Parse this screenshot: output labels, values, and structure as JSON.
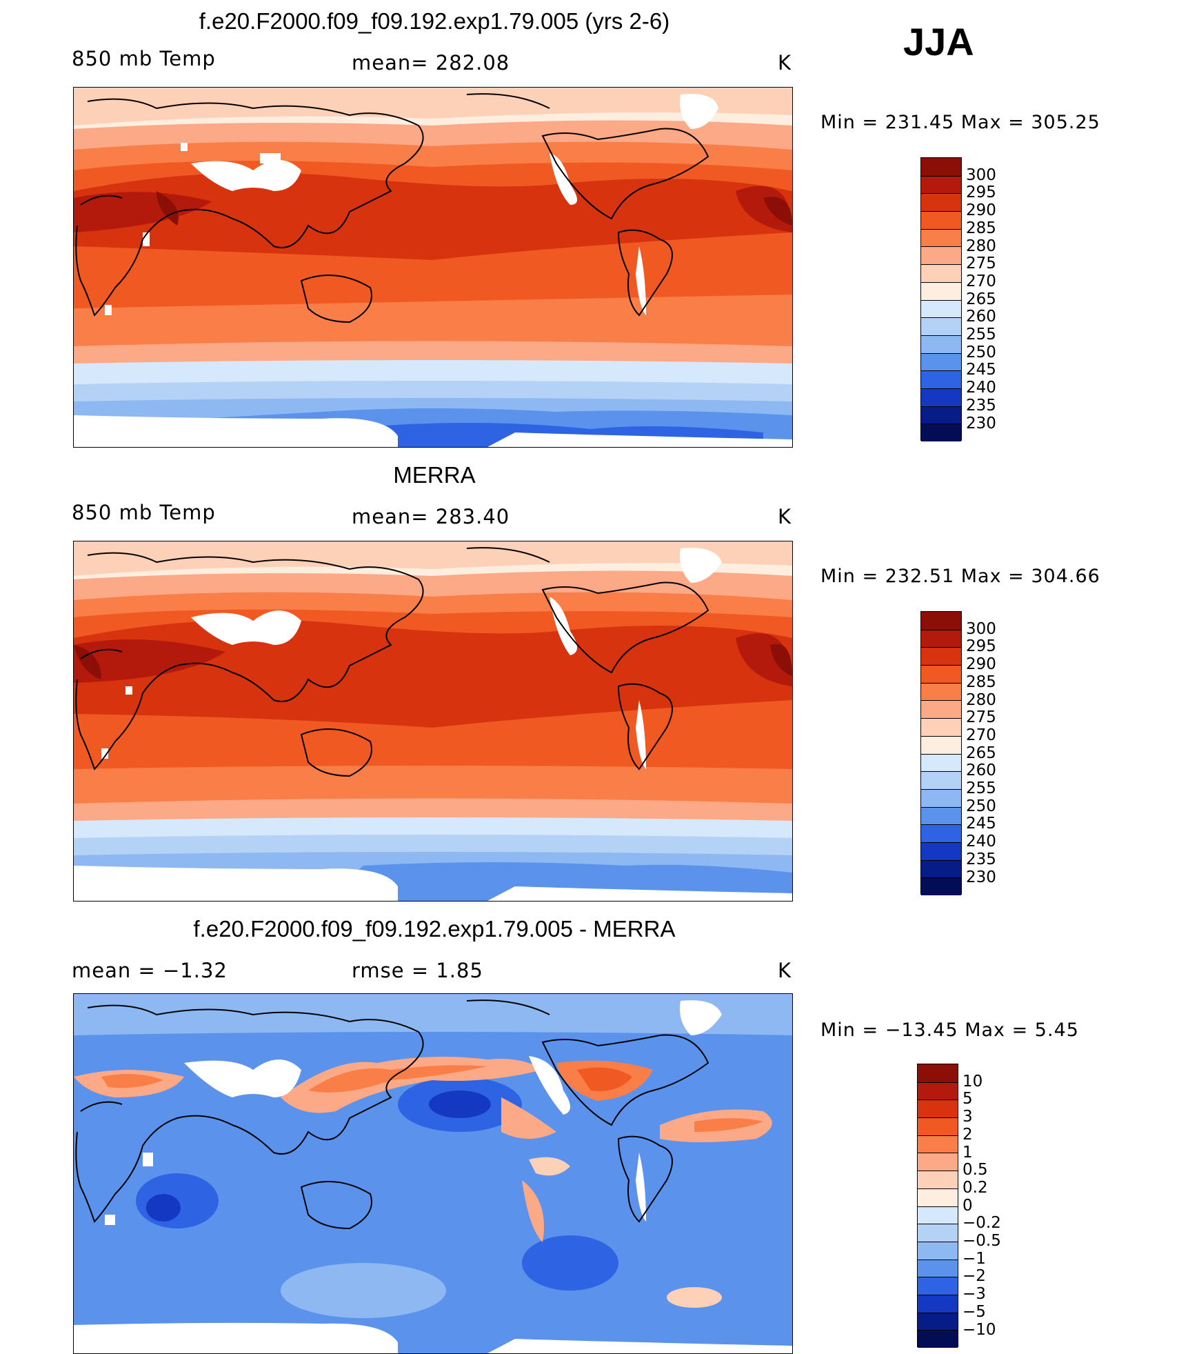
{
  "season": "JJA",
  "units": "K",
  "panels": [
    {
      "id": "model",
      "title": "f.e20.F2000.f09_f09.192.exp1.79.005 (yrs 2-6)",
      "variable": "850 mb Temp",
      "stats": "mean= 282.08",
      "units": "K",
      "minmax": "Min = 231.45 Max = 305.25",
      "colorbar": {
        "labels": [
          "300",
          "295",
          "290",
          "285",
          "280",
          "275",
          "270",
          "265",
          "260",
          "255",
          "250",
          "245",
          "240",
          "235",
          "230"
        ],
        "colors": [
          "#8b0f07",
          "#b41a0c",
          "#d6330e",
          "#f05a22",
          "#f97e47",
          "#fca987",
          "#fdd0b8",
          "#fdeee0",
          "#d6e8fb",
          "#b3d2f6",
          "#8db8f2",
          "#5a92ec",
          "#2e64e3",
          "#1438c2",
          "#061c86",
          "#030d55"
        ]
      }
    },
    {
      "id": "obs",
      "title": "MERRA",
      "variable": "850 mb Temp",
      "stats": "mean= 283.40",
      "units": "K",
      "minmax": "Min = 232.51 Max = 304.66",
      "colorbar": {
        "labels": [
          "300",
          "295",
          "290",
          "285",
          "280",
          "275",
          "270",
          "265",
          "260",
          "255",
          "250",
          "245",
          "240",
          "235",
          "230"
        ],
        "colors": [
          "#8b0f07",
          "#b41a0c",
          "#d6330e",
          "#f05a22",
          "#f97e47",
          "#fca987",
          "#fdd0b8",
          "#fdeee0",
          "#d6e8fb",
          "#b3d2f6",
          "#8db8f2",
          "#5a92ec",
          "#2e64e3",
          "#1438c2",
          "#061c86",
          "#030d55"
        ]
      }
    },
    {
      "id": "diff",
      "title": "f.e20.F2000.f09_f09.192.exp1.79.005 - MERRA",
      "variable": "mean =   −1.32",
      "stats": "rmse =    1.85",
      "units": "K",
      "minmax": "Min = −13.45 Max =    5.45",
      "colorbar": {
        "labels": [
          "10",
          "5",
          "3",
          "2",
          "1",
          "0.5",
          "0.2",
          "0",
          "−0.2",
          "−0.5",
          "−1",
          "−2",
          "−3",
          "−5",
          "−10"
        ],
        "colors": [
          "#8b0f07",
          "#b41a0c",
          "#d6330e",
          "#f05a22",
          "#f97e47",
          "#fca987",
          "#fdd0b8",
          "#fdeee0",
          "#d6e8fb",
          "#b3d2f6",
          "#8db8f2",
          "#5a92ec",
          "#2e64e3",
          "#1438c2",
          "#061c86",
          "#030d55"
        ]
      }
    }
  ]
}
